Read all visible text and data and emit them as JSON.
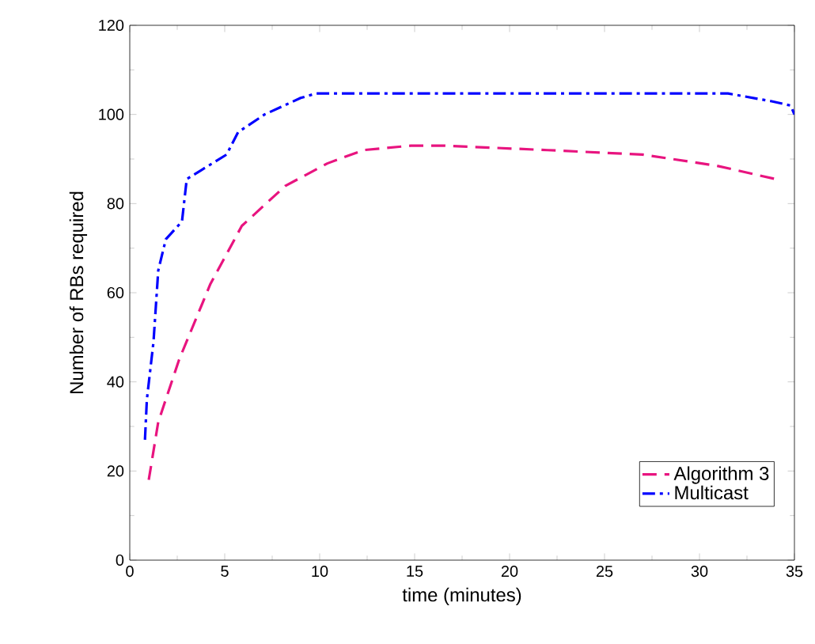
{
  "chart_data": {
    "type": "line",
    "xlabel": "time (minutes)",
    "ylabel": "Number of RBs required",
    "xlim": [
      0,
      35
    ],
    "ylim": [
      0,
      120
    ],
    "xticks": [
      0,
      5,
      10,
      15,
      20,
      25,
      30,
      35
    ],
    "yticks": [
      0,
      20,
      40,
      60,
      80,
      100,
      120
    ],
    "grid": false,
    "legend": "bottom right",
    "marker": "none",
    "series": [
      {
        "name": "Algorithm 3",
        "color": "#e8147f",
        "line_style": "dashed",
        "x": [
          1,
          1.5,
          2.6,
          4.25,
          5.9,
          8.2,
          10.4,
          12.3,
          14.8,
          16.5,
          22,
          27,
          30.9,
          34
        ],
        "values": [
          18,
          31,
          45,
          62,
          75,
          84,
          89,
          92,
          93,
          93,
          92,
          91,
          88.5,
          85.5
        ]
      },
      {
        "name": "Multicast",
        "color": "#0000ff",
        "line_style": "dashdot",
        "x": [
          0.8,
          0.9,
          1.25,
          1.5,
          1.9,
          2.75,
          3,
          5.1,
          5.7,
          7.1,
          9,
          9.8,
          31.5,
          33.75,
          34.8,
          35
        ],
        "values": [
          27,
          36,
          49,
          65,
          72,
          76,
          85.5,
          91,
          96,
          100,
          103.7,
          104.7,
          104.7,
          103,
          102,
          100
        ]
      }
    ]
  }
}
